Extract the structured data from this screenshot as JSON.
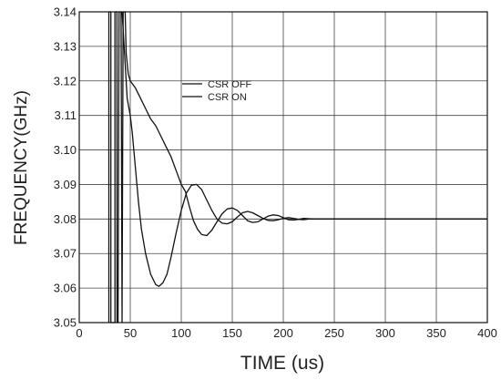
{
  "chart_data": {
    "type": "line",
    "xlabel": "TIME (us)",
    "ylabel": "FREQUENCY(GHz)",
    "xlim": [
      0,
      400
    ],
    "ylim": [
      3.05,
      3.14
    ],
    "x_ticks": [
      "0",
      "50",
      "100",
      "150",
      "200",
      "250",
      "300",
      "350",
      "400"
    ],
    "y_ticks": [
      "3.05",
      "3.06",
      "3.07",
      "3.08",
      "3.09",
      "3.10",
      "3.11",
      "3.12",
      "3.13",
      "3.14"
    ],
    "grid": true,
    "legend_position": "top-center",
    "series": [
      {
        "name": "CSR OFF",
        "points": [
          [
            29,
            3.05
          ],
          [
            29,
            3.14
          ],
          [
            31,
            3.14
          ],
          [
            31,
            3.05
          ],
          [
            35,
            3.05
          ],
          [
            35,
            3.14
          ],
          [
            37,
            3.14
          ],
          [
            37,
            3.05
          ],
          [
            38,
            3.05
          ],
          [
            39,
            3.14
          ],
          [
            41,
            3.14
          ],
          [
            42,
            3.05
          ],
          [
            43,
            3.14
          ],
          [
            45,
            3.14
          ],
          [
            46,
            3.128
          ],
          [
            48,
            3.122
          ],
          [
            50,
            3.12
          ],
          [
            55,
            3.118
          ],
          [
            60,
            3.115
          ],
          [
            65,
            3.112
          ],
          [
            70,
            3.109
          ],
          [
            75,
            3.107
          ],
          [
            80,
            3.104
          ],
          [
            85,
            3.101
          ],
          [
            90,
            3.098
          ],
          [
            95,
            3.094
          ],
          [
            100,
            3.09
          ],
          [
            104,
            3.088
          ],
          [
            108,
            3.0835
          ],
          [
            112,
            3.0795
          ],
          [
            116,
            3.077
          ],
          [
            120,
            3.0755
          ],
          [
            125,
            3.0752
          ],
          [
            130,
            3.0768
          ],
          [
            135,
            3.0792
          ],
          [
            140,
            3.0815
          ],
          [
            145,
            3.0829
          ],
          [
            150,
            3.0832
          ],
          [
            155,
            3.0825
          ],
          [
            160,
            3.081
          ],
          [
            165,
            3.0795
          ],
          [
            170,
            3.079
          ],
          [
            175,
            3.0792
          ],
          [
            180,
            3.08
          ],
          [
            185,
            3.0808
          ],
          [
            190,
            3.0812
          ],
          [
            195,
            3.081
          ],
          [
            200,
            3.0804
          ],
          [
            205,
            3.0798
          ],
          [
            210,
            3.0797
          ],
          [
            215,
            3.0799
          ],
          [
            220,
            3.0802
          ],
          [
            225,
            3.0801
          ],
          [
            230,
            3.08
          ],
          [
            400,
            3.08
          ]
        ]
      },
      {
        "name": "CSR ON",
        "points": [
          [
            42,
            3.14
          ],
          [
            45,
            3.125
          ],
          [
            47,
            3.115
          ],
          [
            50,
            3.11
          ],
          [
            52,
            3.105
          ],
          [
            55,
            3.095
          ],
          [
            58,
            3.085
          ],
          [
            61,
            3.077
          ],
          [
            65,
            3.07
          ],
          [
            70,
            3.064
          ],
          [
            75,
            3.061
          ],
          [
            78,
            3.0605
          ],
          [
            82,
            3.0615
          ],
          [
            86,
            3.064
          ],
          [
            90,
            3.069
          ],
          [
            95,
            3.076
          ],
          [
            100,
            3.0825
          ],
          [
            105,
            3.0875
          ],
          [
            110,
            3.0898
          ],
          [
            115,
            3.09
          ],
          [
            120,
            3.0885
          ],
          [
            125,
            3.0855
          ],
          [
            130,
            3.0825
          ],
          [
            135,
            3.08
          ],
          [
            140,
            3.0788
          ],
          [
            145,
            3.0786
          ],
          [
            150,
            3.0792
          ],
          [
            155,
            3.0806
          ],
          [
            160,
            3.0818
          ],
          [
            165,
            3.0822
          ],
          [
            170,
            3.0818
          ],
          [
            175,
            3.081
          ],
          [
            180,
            3.0802
          ],
          [
            185,
            3.0796
          ],
          [
            190,
            3.0795
          ],
          [
            195,
            3.0798
          ],
          [
            200,
            3.0802
          ],
          [
            205,
            3.0804
          ],
          [
            210,
            3.0802
          ],
          [
            215,
            3.0799
          ],
          [
            220,
            3.0798
          ],
          [
            225,
            3.08
          ],
          [
            400,
            3.08
          ]
        ]
      }
    ]
  }
}
